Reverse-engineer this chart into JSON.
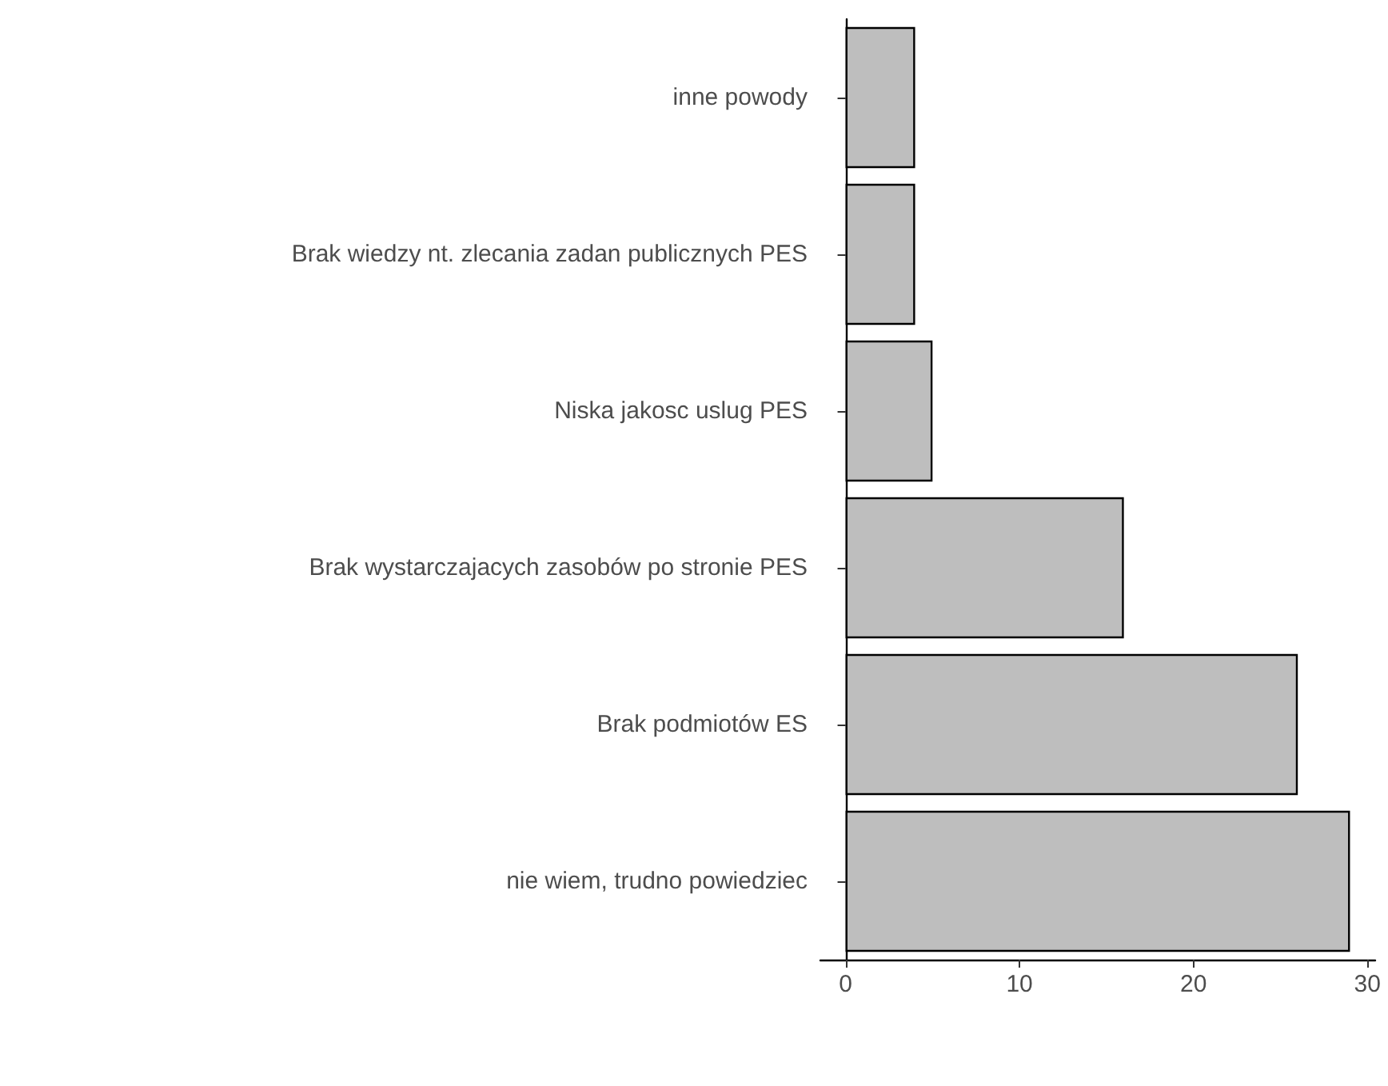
{
  "chart_data": {
    "type": "bar",
    "orientation": "horizontal",
    "categories": [
      "inne powody",
      "Brak wiedzy nt. zlecania zadan publicznych PES",
      "Niska jakosc uslug PES",
      "Brak wystarczajacych zasobów po stronie PES",
      "Brak podmiotów ES",
      "nie wiem, trudno powiedziec"
    ],
    "values": [
      4,
      4,
      5,
      16,
      26,
      29
    ],
    "color": "#bebebe",
    "xlim": [
      -1.45,
      30.45
    ],
    "xticks": [
      0,
      10,
      20,
      30
    ],
    "grid": false
  }
}
